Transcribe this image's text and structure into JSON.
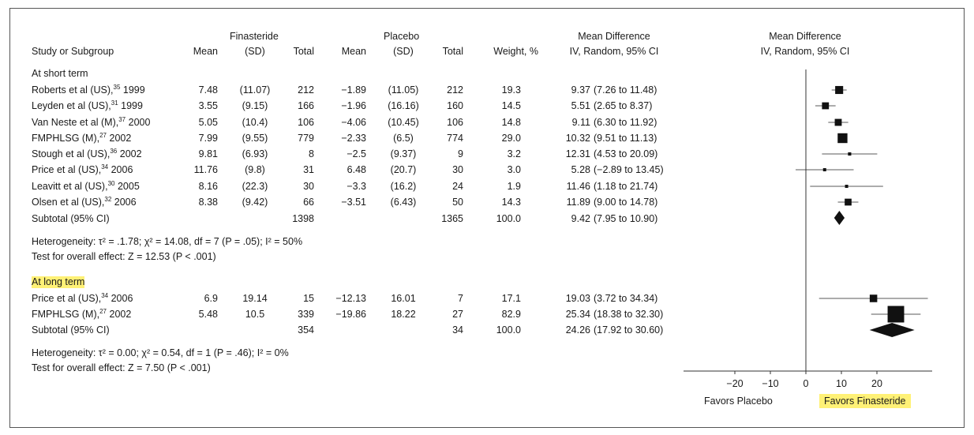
{
  "headers": {
    "study": "Study or Subgroup",
    "fin_group": "Finasteride",
    "pla_group": "Placebo",
    "mean": "Mean",
    "sd": "(SD)",
    "total": "Total",
    "weight": "Weight, %",
    "md_line1": "Mean Difference",
    "md_line2": "IV, Random, 95% CI",
    "plot_line1": "Mean Difference",
    "plot_line2": "IV, Random, 95% CI"
  },
  "groups": [
    {
      "label": "At short term",
      "highlight": false,
      "studies": [
        {
          "name": "Roberts et al (US),",
          "ref": "35",
          "year": " 1999",
          "fin_mean": "7.48",
          "fin_sd": "(11.07)",
          "fin_n": "212",
          "pla_mean": "−1.89",
          "pla_sd": "(11.05)",
          "pla_n": "212",
          "weight": "19.3",
          "md": "9.37",
          "ci": "(7.26 to 11.48)"
        },
        {
          "name": "Leyden et al (US),",
          "ref": "31",
          "year": " 1999",
          "fin_mean": "3.55",
          "fin_sd": "(9.15)",
          "fin_n": "166",
          "pla_mean": "−1.96",
          "pla_sd": "(16.16)",
          "pla_n": "160",
          "weight": "14.5",
          "md": "5.51",
          "ci": "(2.65 to 8.37)"
        },
        {
          "name": "Van Neste et al (M),",
          "ref": "37",
          "year": " 2000",
          "fin_mean": "5.05",
          "fin_sd": "(10.4)",
          "fin_n": "106",
          "pla_mean": "−4.06",
          "pla_sd": "(10.45)",
          "pla_n": "106",
          "weight": "14.8",
          "md": "9.11",
          "ci": "(6.30 to 11.92)"
        },
        {
          "name": "FMPHLSG (M),",
          "ref": "27",
          "year": " 2002",
          "fin_mean": "7.99",
          "fin_sd": "(9.55)",
          "fin_n": "779",
          "pla_mean": "−2.33",
          "pla_sd": "(6.5)",
          "pla_n": "774",
          "weight": "29.0",
          "md": "10.32",
          "ci": "(9.51 to 11.13)"
        },
        {
          "name": "Stough et al (US),",
          "ref": "36",
          "year": " 2002",
          "fin_mean": "9.81",
          "fin_sd": "(6.93)",
          "fin_n": "8",
          "pla_mean": "−2.5",
          "pla_sd": "(9.37)",
          "pla_n": "9",
          "weight": "3.2",
          "md": "12.31",
          "ci": "(4.53 to 20.09)"
        },
        {
          "name": "Price et al (US),",
          "ref": "34",
          "year": " 2006",
          "fin_mean": "11.76",
          "fin_sd": "(9.8)",
          "fin_n": "31",
          "pla_mean": "6.48",
          "pla_sd": "(20.7)",
          "pla_n": "30",
          "weight": "3.0",
          "md": "5.28",
          "ci": "(−2.89 to 13.45)"
        },
        {
          "name": "Leavitt et al (US),",
          "ref": "30",
          "year": " 2005",
          "fin_mean": "8.16",
          "fin_sd": "(22.3)",
          "fin_n": "30",
          "pla_mean": "−3.3",
          "pla_sd": "(16.2)",
          "pla_n": "24",
          "weight": "1.9",
          "md": "11.46",
          "ci": "(1.18 to 21.74)"
        },
        {
          "name": "Olsen et al (US),",
          "ref": "32",
          "year": " 2006",
          "fin_mean": "8.38",
          "fin_sd": "(9.42)",
          "fin_n": "66",
          "pla_mean": "−3.51",
          "pla_sd": "(6.43)",
          "pla_n": "50",
          "weight": "14.3",
          "md": "11.89",
          "ci": "(9.00 to 14.78)"
        }
      ],
      "subtotal": {
        "label": "Subtotal (95% CI)",
        "fin_n": "1398",
        "pla_n": "1365",
        "weight": "100.0",
        "md": "9.42",
        "ci": "(7.95 to 10.90)"
      },
      "heterogeneity": "Heterogeneity: τ² = .1.78; χ² = 14.08, df = 7 (P = .05); I² = 50%",
      "overall": "Test for overall effect: Z = 12.53 (P < .001)"
    },
    {
      "label": "At long term",
      "highlight": true,
      "studies": [
        {
          "name": "Price et al (US),",
          "ref": "34",
          "year": " 2006",
          "fin_mean": "6.9",
          "fin_sd": "19.14",
          "fin_n": "15",
          "pla_mean": "−12.13",
          "pla_sd": "16.01",
          "pla_n": "7",
          "weight": "17.1",
          "md": "19.03",
          "ci": "(3.72 to 34.34)"
        },
        {
          "name": "FMPHLSG (M),",
          "ref": "27",
          "year": " 2002",
          "fin_mean": "5.48",
          "fin_sd": "10.5",
          "fin_n": "339",
          "pla_mean": "−19.86",
          "pla_sd": "18.22",
          "pla_n": "27",
          "weight": "82.9",
          "md": "25.34",
          "ci": "(18.38 to 32.30)"
        }
      ],
      "subtotal": {
        "label": "Subtotal (95% CI)",
        "fin_n": "354",
        "pla_n": "34",
        "weight": "100.0",
        "md": "24.26",
        "ci": "(17.92 to 30.60)"
      },
      "heterogeneity": "Heterogeneity: τ² = 0.00; χ² = 0.54, df = 1 (P = .46); I² = 0%",
      "overall": "Test for overall effect: Z = 7.50 (P < .001)"
    }
  ],
  "axis": {
    "ticks": [
      "−20",
      "−10",
      "0",
      "10",
      "20"
    ],
    "favors_left": "Favors Placebo",
    "favors_right": "Favors Finasteride"
  },
  "colors": {
    "highlight": "#fff176",
    "ink": "#1a1a1a"
  },
  "chart_data": {
    "type": "forest",
    "xlim": [
      -20,
      30
    ],
    "xticks": [
      -20,
      -10,
      0,
      10,
      20
    ],
    "title": "Mean Difference IV, Random, 95% CI",
    "xlabel_left": "Favors Placebo",
    "xlabel_right": "Favors Finasteride",
    "rows": [
      {
        "study": "Roberts et al (US), 1999",
        "md": 9.37,
        "lo": 7.26,
        "hi": 11.48,
        "weight": 19.3
      },
      {
        "study": "Leyden et al (US), 1999",
        "md": 5.51,
        "lo": 2.65,
        "hi": 8.37,
        "weight": 14.5
      },
      {
        "study": "Van Neste et al (M), 2000",
        "md": 9.11,
        "lo": 6.3,
        "hi": 11.92,
        "weight": 14.8
      },
      {
        "study": "FMPHLSG (M), 2002",
        "md": 10.32,
        "lo": 9.51,
        "hi": 11.13,
        "weight": 29.0
      },
      {
        "study": "Stough et al (US), 2002",
        "md": 12.31,
        "lo": 4.53,
        "hi": 20.09,
        "weight": 3.2
      },
      {
        "study": "Price et al (US), 2006",
        "md": 5.28,
        "lo": -2.89,
        "hi": 13.45,
        "weight": 3.0
      },
      {
        "study": "Leavitt et al (US), 2005",
        "md": 11.46,
        "lo": 1.18,
        "hi": 21.74,
        "weight": 1.9
      },
      {
        "study": "Olsen et al (US), 2006",
        "md": 11.89,
        "lo": 9.0,
        "hi": 14.78,
        "weight": 14.3
      },
      {
        "study": "Subtotal short term",
        "md": 9.42,
        "lo": 7.95,
        "hi": 10.9,
        "diamond": true
      },
      {
        "study": "Price et al (US), 2006",
        "md": 19.03,
        "lo": 3.72,
        "hi": 34.34,
        "weight": 17.1
      },
      {
        "study": "FMPHLSG (M), 2002",
        "md": 25.34,
        "lo": 18.38,
        "hi": 32.3,
        "weight": 82.9
      },
      {
        "study": "Subtotal long term",
        "md": 24.26,
        "lo": 17.92,
        "hi": 30.6,
        "diamond": true
      }
    ]
  }
}
